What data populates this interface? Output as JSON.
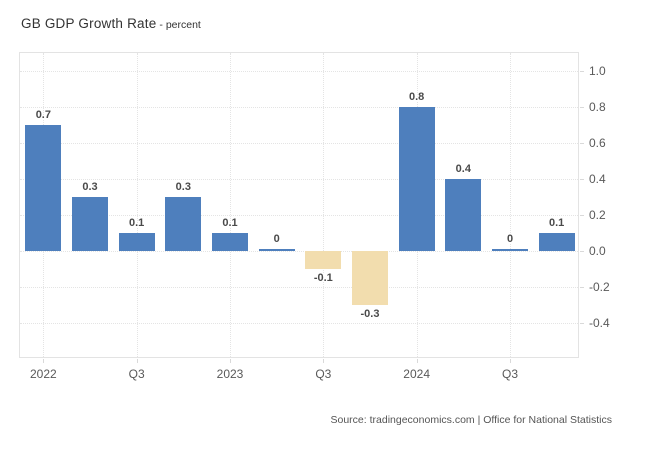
{
  "header": {
    "title": "GB GDP Growth Rate",
    "subtitle": "- percent"
  },
  "footer": {
    "source": "Source: tradingeconomics.com | Office for National Statistics"
  },
  "chart_data": {
    "type": "bar",
    "title": "GB GDP Growth Rate",
    "ylabel": "percent",
    "values": [
      0.7,
      0.3,
      0.1,
      0.3,
      0.1,
      0,
      -0.1,
      -0.3,
      0.8,
      0.4,
      0,
      0.1
    ],
    "bar_labels": [
      "0.7",
      "0.3",
      "0.1",
      "0.3",
      "0.1",
      "0",
      "-0.1",
      "-0.3",
      "0.8",
      "0.4",
      "0",
      "0.1"
    ],
    "x_tick_labels": [
      {
        "slot": 0,
        "label": "2022"
      },
      {
        "slot": 2,
        "label": "Q3"
      },
      {
        "slot": 4,
        "label": "2023"
      },
      {
        "slot": 6,
        "label": "Q3"
      },
      {
        "slot": 8,
        "label": "2024"
      },
      {
        "slot": 10,
        "label": "Q3"
      }
    ],
    "y_ticks": [
      "1.0",
      "0.8",
      "0.6",
      "0.4",
      "0.2",
      "0.0",
      "-0.2",
      "-0.4"
    ],
    "ylim": [
      -0.6,
      1.1
    ],
    "y_axis_position": "right",
    "grid": "dotted",
    "colors": {
      "positive_bar": "#4e7fbd",
      "negative_bar": "#f2ddae"
    }
  }
}
